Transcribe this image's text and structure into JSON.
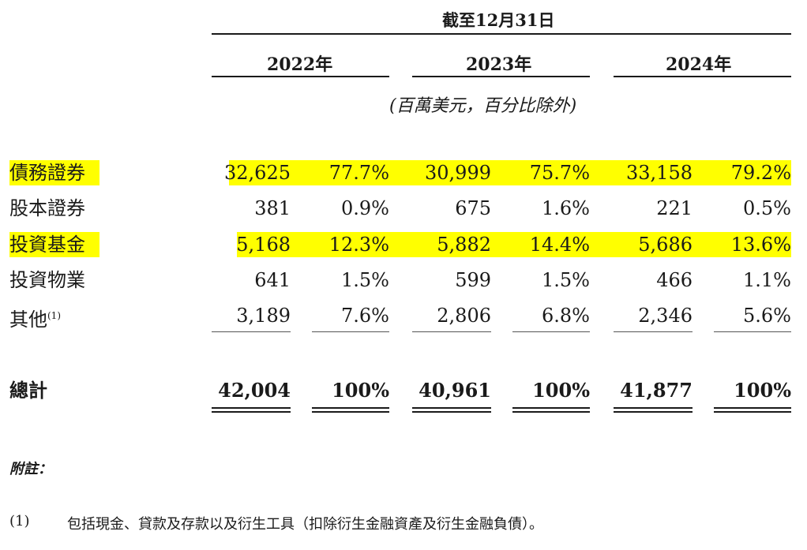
{
  "header": {
    "period": "截至12月31日",
    "years": [
      "2022年",
      "2023年",
      "2024年"
    ],
    "unit_note": "(百萬美元，百分比除外)"
  },
  "rows": [
    {
      "label": "債務證券",
      "values": [
        "32,625",
        "77.7%",
        "30,999",
        "75.7%",
        "33,158",
        "79.2%"
      ],
      "highlighted": true
    },
    {
      "label": "股本證券",
      "values": [
        "381",
        "0.9%",
        "675",
        "1.6%",
        "221",
        "0.5%"
      ],
      "highlighted": false
    },
    {
      "label": "投資基金",
      "values": [
        "5,168",
        "12.3%",
        "5,882",
        "14.4%",
        "5,686",
        "13.6%"
      ],
      "highlighted": true
    },
    {
      "label": "投資物業",
      "values": [
        "641",
        "1.5%",
        "599",
        "1.5%",
        "466",
        "1.1%"
      ],
      "highlighted": false
    },
    {
      "label": "其他",
      "label_note": "(1)",
      "values": [
        "3,189",
        "7.6%",
        "2,806",
        "6.8%",
        "2,346",
        "5.6%"
      ],
      "highlighted": false
    }
  ],
  "total": {
    "label": "總計",
    "values": [
      "42,004",
      "100%",
      "40,961",
      "100%",
      "41,877",
      "100%"
    ]
  },
  "notes": {
    "title": "附註：",
    "items": [
      {
        "marker": "(1)",
        "text": "包括現金、貸款及存款以及衍生工具（扣除衍生金融資產及衍生金融負債）。"
      }
    ]
  },
  "colors": {
    "highlight": "#ffff00",
    "text": "#1a1a1a"
  }
}
